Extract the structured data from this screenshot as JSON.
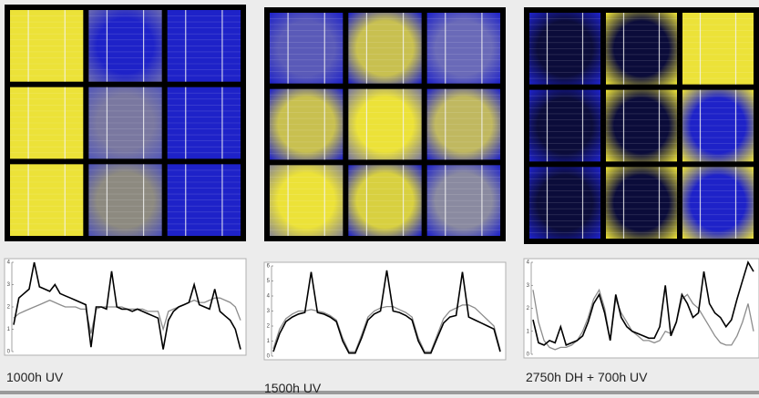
{
  "chart_data": [
    {
      "type": "line",
      "caption": "1000h UV",
      "ylim": [
        0,
        4
      ],
      "yticks": [
        0,
        1,
        2,
        3,
        4
      ],
      "series": [
        {
          "color": "#000000",
          "values": [
            1.2,
            2.4,
            2.6,
            2.8,
            4.0,
            2.9,
            2.8,
            2.7,
            3.0,
            2.6,
            2.5,
            2.4,
            2.3,
            2.2,
            2.1,
            0.2,
            2.0,
            2.0,
            1.9,
            3.6,
            2.0,
            1.9,
            1.9,
            1.8,
            1.9,
            1.8,
            1.7,
            1.6,
            1.5,
            0.1,
            1.4,
            1.8,
            2.0,
            2.1,
            2.2,
            3.0,
            2.1,
            2.0,
            1.9,
            2.8,
            1.8,
            1.6,
            1.4,
            1.0,
            0.1
          ]
        },
        {
          "color": "#8c8c8c",
          "values": [
            1.5,
            1.7,
            1.8,
            1.9,
            2.0,
            2.1,
            2.2,
            2.3,
            2.2,
            2.1,
            2.0,
            2.0,
            2.0,
            1.9,
            1.9,
            0.8,
            1.9,
            2.0,
            2.0,
            2.0,
            2.0,
            2.0,
            1.9,
            1.9,
            1.9,
            1.9,
            1.8,
            1.8,
            1.8,
            1.0,
            1.8,
            1.9,
            2.0,
            2.1,
            2.2,
            2.3,
            2.2,
            2.2,
            2.3,
            2.4,
            2.4,
            2.3,
            2.2,
            2.0,
            1.4
          ]
        }
      ]
    },
    {
      "type": "line",
      "caption": "1500h UV",
      "ylim": [
        0,
        6
      ],
      "yticks": [
        0,
        1,
        2,
        3,
        4,
        5,
        6
      ],
      "series": [
        {
          "color": "#000000",
          "values": [
            0.3,
            1.5,
            2.3,
            2.6,
            2.8,
            2.9,
            5.6,
            2.9,
            2.8,
            2.6,
            2.3,
            1.0,
            0.2,
            0.2,
            1.2,
            2.4,
            2.8,
            3.0,
            5.7,
            3.0,
            2.9,
            2.7,
            2.4,
            1.0,
            0.2,
            0.2,
            1.2,
            2.2,
            2.6,
            2.7,
            5.6,
            2.6,
            2.4,
            2.2,
            2.0,
            1.8,
            0.3
          ]
        },
        {
          "color": "#8c8c8c",
          "values": [
            0.5,
            1.8,
            2.5,
            2.8,
            3.0,
            3.0,
            3.1,
            3.0,
            2.9,
            2.7,
            2.4,
            1.2,
            0.3,
            0.3,
            1.4,
            2.6,
            3.0,
            3.2,
            3.3,
            3.3,
            3.1,
            2.9,
            2.6,
            1.2,
            0.3,
            0.3,
            1.4,
            2.5,
            3.0,
            3.2,
            3.4,
            3.4,
            3.2,
            2.8,
            2.4,
            2.0,
            0.4
          ]
        }
      ]
    },
    {
      "type": "line",
      "caption": "2750h DH + 700h UV",
      "ylim": [
        0,
        4
      ],
      "yticks": [
        0,
        1,
        2,
        3,
        4
      ],
      "series": [
        {
          "color": "#000000",
          "values": [
            1.5,
            0.5,
            0.4,
            0.6,
            0.5,
            1.2,
            0.4,
            0.5,
            0.6,
            0.8,
            1.4,
            2.2,
            2.6,
            1.8,
            0.6,
            2.6,
            1.6,
            1.2,
            1.0,
            0.9,
            0.8,
            0.7,
            0.7,
            1.2,
            3.0,
            0.8,
            1.4,
            2.6,
            2.2,
            1.6,
            1.8,
            3.6,
            2.2,
            1.8,
            1.6,
            1.2,
            1.5,
            2.4,
            3.2,
            4.0,
            3.6
          ]
        },
        {
          "color": "#8c8c8c",
          "values": [
            2.8,
            1.4,
            0.6,
            0.3,
            0.2,
            0.3,
            0.3,
            0.4,
            0.6,
            1.0,
            1.6,
            2.4,
            2.8,
            2.0,
            0.6,
            2.4,
            1.8,
            1.4,
            1.0,
            0.8,
            0.6,
            0.6,
            0.5,
            0.6,
            1.0,
            0.9,
            1.4,
            2.4,
            2.6,
            2.2,
            2.0,
            1.6,
            1.2,
            0.8,
            0.5,
            0.4,
            0.4,
            0.8,
            1.4,
            2.2,
            1.0
          ]
        }
      ]
    }
  ]
}
